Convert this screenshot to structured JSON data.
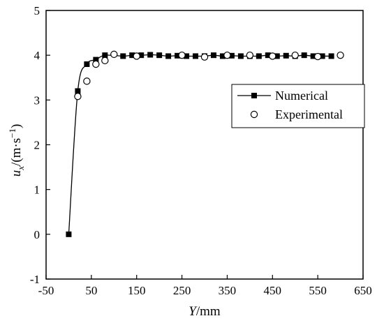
{
  "chart_data": {
    "type": "line",
    "xlabel": {
      "italic": "Y",
      "rest": "/mm"
    },
    "ylabel": {
      "u": "u",
      "sub": "x",
      "unit": "/(m·s",
      "sup": "−1",
      "close": ")"
    },
    "xlim": [
      -50,
      650
    ],
    "ylim": [
      -1,
      5
    ],
    "xticks": [
      -50,
      50,
      150,
      250,
      350,
      450,
      550,
      650
    ],
    "yticks": [
      -1,
      0,
      1,
      2,
      3,
      4,
      5
    ],
    "legend_position": "right",
    "series": [
      {
        "name": "Numerical",
        "marker": "filled-square",
        "line": true,
        "x": [
          0,
          20,
          40,
          60,
          80,
          120,
          140,
          160,
          180,
          200,
          220,
          240,
          260,
          280,
          300,
          320,
          340,
          360,
          380,
          400,
          420,
          440,
          460,
          480,
          500,
          520,
          540,
          560,
          580
        ],
        "y": [
          0,
          3.2,
          3.8,
          3.9,
          4.0,
          3.98,
          4.0,
          4.0,
          4.01,
          4.0,
          3.98,
          3.99,
          3.98,
          3.98,
          3.98,
          4.0,
          3.98,
          3.99,
          3.98,
          3.98,
          3.98,
          4.0,
          3.98,
          3.99,
          3.98,
          4.0,
          3.98,
          3.98,
          3.98
        ]
      },
      {
        "name": "Experimental",
        "marker": "open-circle",
        "line": false,
        "x": [
          20,
          40,
          60,
          80,
          100,
          150,
          250,
          300,
          350,
          400,
          450,
          500,
          550,
          600
        ],
        "y": [
          3.08,
          3.42,
          3.8,
          3.88,
          4.02,
          3.98,
          4.0,
          3.96,
          4.0,
          4.0,
          3.98,
          4.0,
          3.97,
          4.0
        ]
      }
    ]
  }
}
